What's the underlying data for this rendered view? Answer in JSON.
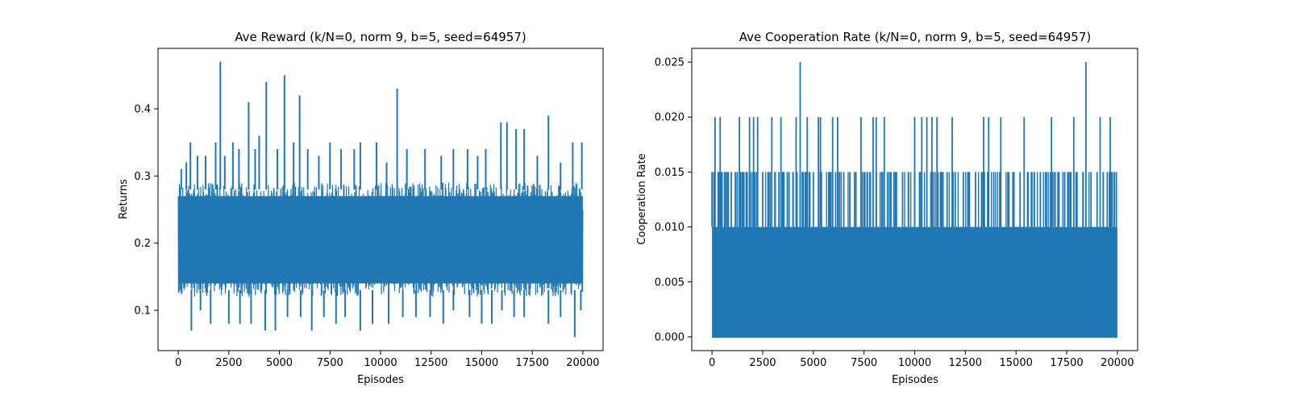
{
  "figure": {
    "line_color": "#1f77b4"
  },
  "chart_data": [
    {
      "type": "line",
      "title": "Ave Reward (k/N=0, norm 9, b=5, seed=64957)",
      "xlabel": "Episodes",
      "ylabel": "Returns",
      "xlim": [
        -1000,
        21000
      ],
      "ylim": [
        0.04,
        0.49
      ],
      "xticks": [
        0,
        2500,
        5000,
        7500,
        10000,
        12500,
        15000,
        17500,
        20000
      ],
      "xtick_labels": [
        "0",
        "2500",
        "5000",
        "7500",
        "10000",
        "12500",
        "15000",
        "17500",
        "20000"
      ],
      "yticks": [
        0.1,
        0.2,
        0.3,
        0.4
      ],
      "ytick_labels": [
        "0.1",
        "0.2",
        "0.3",
        "0.4"
      ],
      "grid": false,
      "description_of_noise": "dense oscillation between roughly 0.10 and 0.30 every episode",
      "band": {
        "low": 0.12,
        "high": 0.29
      },
      "peaks": [
        [
          150,
          0.31
        ],
        [
          400,
          0.32
        ],
        [
          600,
          0.35
        ],
        [
          950,
          0.33
        ],
        [
          1350,
          0.33
        ],
        [
          1850,
          0.35
        ],
        [
          2080,
          0.47
        ],
        [
          2300,
          0.33
        ],
        [
          2700,
          0.35
        ],
        [
          3000,
          0.34
        ],
        [
          3480,
          0.41
        ],
        [
          3800,
          0.34
        ],
        [
          4000,
          0.36
        ],
        [
          4350,
          0.44
        ],
        [
          4900,
          0.34
        ],
        [
          5250,
          0.45
        ],
        [
          5700,
          0.35
        ],
        [
          6000,
          0.42
        ],
        [
          6400,
          0.34
        ],
        [
          6950,
          0.33
        ],
        [
          7500,
          0.35
        ],
        [
          8050,
          0.34
        ],
        [
          8700,
          0.34
        ],
        [
          9000,
          0.35
        ],
        [
          9800,
          0.35
        ],
        [
          10300,
          0.32
        ],
        [
          10820,
          0.43
        ],
        [
          11300,
          0.34
        ],
        [
          12200,
          0.34
        ],
        [
          13000,
          0.33
        ],
        [
          13600,
          0.34
        ],
        [
          14300,
          0.34
        ],
        [
          14800,
          0.33
        ],
        [
          15200,
          0.34
        ],
        [
          15950,
          0.38
        ],
        [
          16250,
          0.38
        ],
        [
          16700,
          0.37
        ],
        [
          17100,
          0.37
        ],
        [
          17750,
          0.33
        ],
        [
          18300,
          0.39
        ],
        [
          18900,
          0.32
        ],
        [
          19500,
          0.35
        ],
        [
          19950,
          0.35
        ]
      ],
      "troughs": [
        [
          650,
          0.07
        ],
        [
          1100,
          0.1
        ],
        [
          1600,
          0.08
        ],
        [
          2500,
          0.08
        ],
        [
          3050,
          0.08
        ],
        [
          3600,
          0.08
        ],
        [
          4300,
          0.07
        ],
        [
          4800,
          0.07
        ],
        [
          5400,
          0.09
        ],
        [
          6050,
          0.09
        ],
        [
          6600,
          0.07
        ],
        [
          7200,
          0.09
        ],
        [
          7800,
          0.08
        ],
        [
          8250,
          0.09
        ],
        [
          9000,
          0.07
        ],
        [
          9600,
          0.08
        ],
        [
          10400,
          0.08
        ],
        [
          11100,
          0.09
        ],
        [
          11750,
          0.09
        ],
        [
          12450,
          0.09
        ],
        [
          13100,
          0.08
        ],
        [
          13600,
          0.1
        ],
        [
          14400,
          0.09
        ],
        [
          15000,
          0.08
        ],
        [
          15500,
          0.08
        ],
        [
          16000,
          0.1
        ],
        [
          16600,
          0.09
        ],
        [
          17100,
          0.09
        ],
        [
          18300,
          0.08
        ],
        [
          18900,
          0.09
        ],
        [
          19600,
          0.06
        ],
        [
          19900,
          0.1
        ]
      ]
    },
    {
      "type": "line",
      "title": "Ave Cooperation Rate (k/N=0, norm 9, b=5, seed=64957)",
      "xlabel": "Episodes",
      "ylabel": "Cooperation Rate",
      "xlim": [
        -1000,
        21000
      ],
      "ylim": [
        -0.00125,
        0.02625
      ],
      "xticks": [
        0,
        2500,
        5000,
        7500,
        10000,
        12500,
        15000,
        17500,
        20000
      ],
      "xtick_labels": [
        "0",
        "2500",
        "5000",
        "7500",
        "10000",
        "12500",
        "15000",
        "17500",
        "20000"
      ],
      "yticks": [
        0.0,
        0.005,
        0.01,
        0.015,
        0.02,
        0.025
      ],
      "ytick_labels": [
        "0.000",
        "0.005",
        "0.010",
        "0.015",
        "0.020",
        "0.025"
      ],
      "grid": false,
      "band": {
        "low": 0.0,
        "high": 0.01
      },
      "spikes_0_015": [
        0,
        300,
        700,
        950,
        1150,
        1500,
        1700,
        2200,
        2500,
        2800,
        3100,
        3300,
        3550,
        3800,
        4000,
        4500,
        4700,
        5000,
        5400,
        5800,
        6100,
        6500,
        6800,
        7100,
        7500,
        7800,
        8100,
        8400,
        8800,
        9100,
        9400,
        9700,
        10000,
        10300,
        10600,
        11000,
        11300,
        11600,
        12000,
        12400,
        12700,
        13000,
        13300,
        13600,
        13900,
        14200,
        14600,
        14900,
        15200,
        15600,
        15900,
        16200,
        16500,
        16800,
        17100,
        17400,
        17700,
        18000,
        18300,
        18700,
        19000,
        19300,
        19600,
        19950
      ],
      "spikes_0_020": [
        150,
        400,
        1350,
        1850,
        2050,
        2250,
        2950,
        3400,
        4150,
        4700,
        5250,
        5350,
        5950,
        6200,
        7350,
        7950,
        8100,
        8500,
        10000,
        10350,
        10600,
        10850,
        11100,
        11850,
        13400,
        13650,
        14250,
        15400,
        16750,
        17850,
        19150,
        19650
      ],
      "spikes_0_025": [
        4350,
        18450
      ]
    }
  ]
}
